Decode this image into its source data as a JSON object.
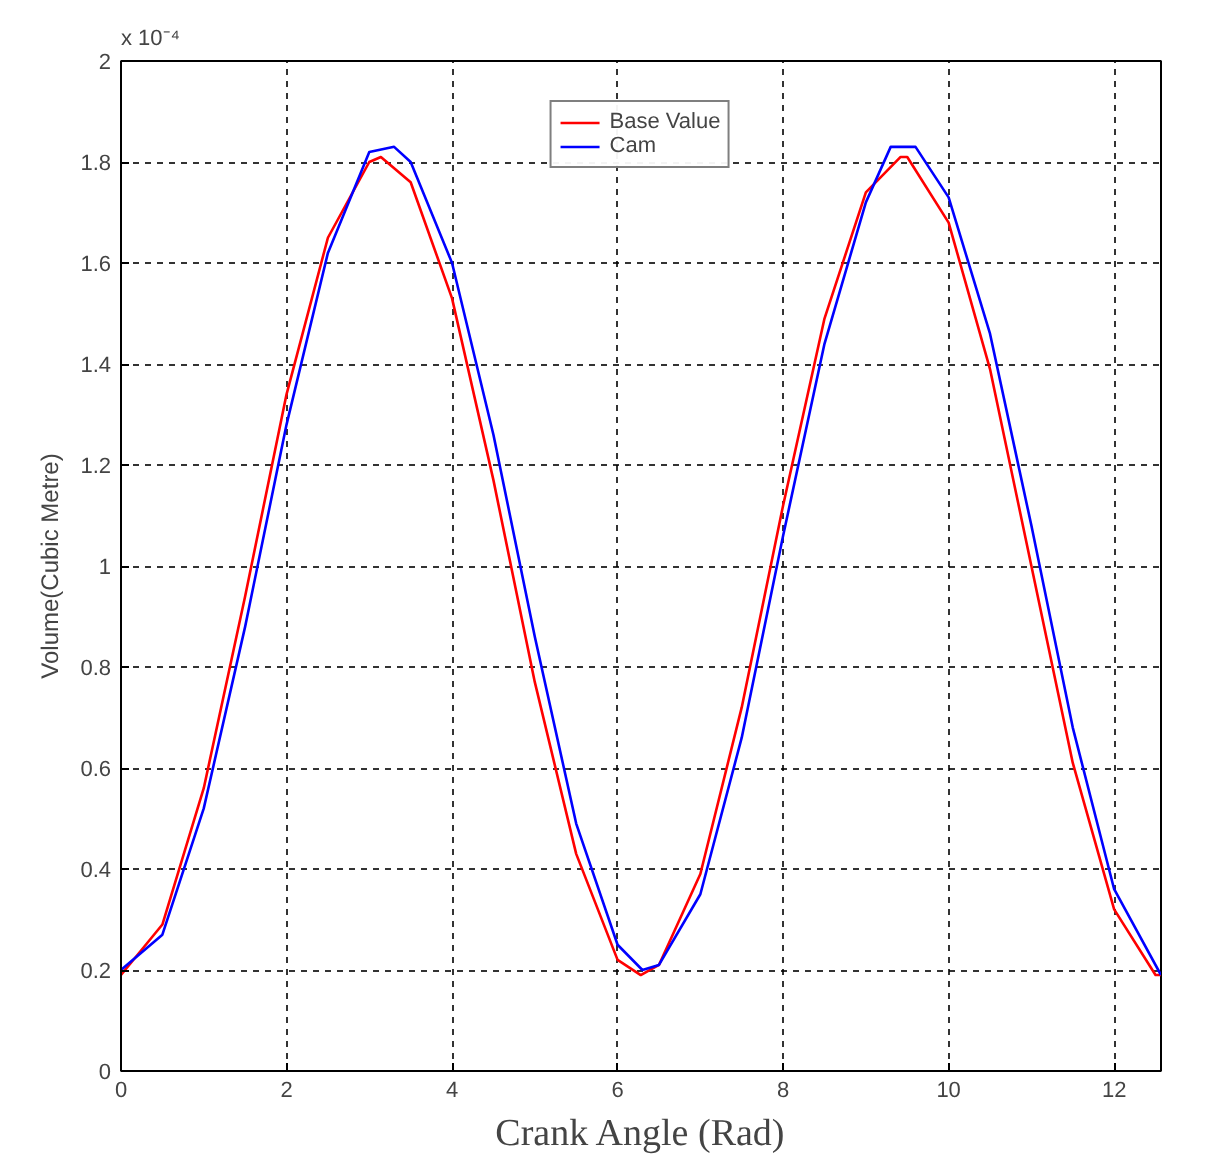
{
  "chart_data": {
    "type": "line",
    "xlabel": "Crank Angle (Rad)",
    "ylabel": "Volume(Cubic Metre)",
    "annotations": [
      "x 10⁻⁴"
    ],
    "xlim": [
      0,
      12.566
    ],
    "xticks": [
      0,
      2,
      4,
      6,
      8,
      10,
      12
    ],
    "ylim": [
      0,
      2
    ],
    "yticks": [
      0,
      0.2,
      0.4,
      0.6,
      0.8,
      1,
      1.2,
      1.4,
      1.6,
      1.8,
      2
    ],
    "grid": true,
    "legend": "top",
    "line_style": "solid",
    "series": [
      {
        "name": "Base Value",
        "color": "#ff0000",
        "x": [
          0,
          0.5,
          1,
          1.5,
          2,
          2.5,
          3,
          3.14,
          3.5,
          4,
          4.5,
          5,
          5.5,
          6,
          6.28,
          6.5,
          7,
          7.5,
          8,
          8.5,
          9,
          9.42,
          9.5,
          10,
          10.5,
          11,
          11.5,
          12,
          12.5,
          12.566
        ],
        "values": [
          0.19,
          0.29,
          0.56,
          0.94,
          1.34,
          1.65,
          1.8,
          1.81,
          1.76,
          1.53,
          1.17,
          0.77,
          0.43,
          0.22,
          0.19,
          0.21,
          0.39,
          0.72,
          1.12,
          1.49,
          1.74,
          1.81,
          1.81,
          1.68,
          1.39,
          1.0,
          0.61,
          0.32,
          0.19,
          0.19
        ]
      },
      {
        "name": "Cam",
        "color": "#0000ff",
        "x": [
          0,
          0.5,
          1,
          1.5,
          2,
          2.5,
          3,
          3.3,
          3.5,
          4,
          4.5,
          5,
          5.5,
          6,
          6.3,
          6.5,
          7,
          7.5,
          8,
          8.5,
          9,
          9.3,
          9.6,
          10,
          10.5,
          11,
          11.5,
          12,
          12.566
        ],
        "values": [
          0.2,
          0.27,
          0.52,
          0.88,
          1.28,
          1.62,
          1.82,
          1.83,
          1.8,
          1.6,
          1.26,
          0.86,
          0.49,
          0.25,
          0.2,
          0.21,
          0.35,
          0.66,
          1.06,
          1.44,
          1.72,
          1.83,
          1.83,
          1.73,
          1.46,
          1.08,
          0.68,
          0.36,
          0.19
        ]
      }
    ]
  }
}
